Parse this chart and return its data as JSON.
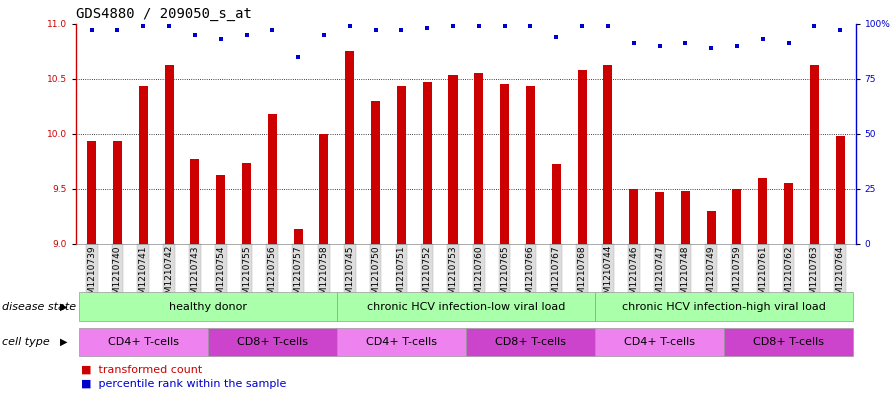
{
  "title": "GDS4880 / 209050_s_at",
  "samples": [
    "GSM1210739",
    "GSM1210740",
    "GSM1210741",
    "GSM1210742",
    "GSM1210743",
    "GSM1210754",
    "GSM1210755",
    "GSM1210756",
    "GSM1210757",
    "GSM1210758",
    "GSM1210745",
    "GSM1210750",
    "GSM1210751",
    "GSM1210752",
    "GSM1210753",
    "GSM1210760",
    "GSM1210765",
    "GSM1210766",
    "GSM1210767",
    "GSM1210768",
    "GSM1210744",
    "GSM1210746",
    "GSM1210747",
    "GSM1210748",
    "GSM1210749",
    "GSM1210759",
    "GSM1210761",
    "GSM1210762",
    "GSM1210763",
    "GSM1210764"
  ],
  "transformed_count": [
    9.93,
    9.93,
    10.43,
    10.62,
    9.77,
    9.62,
    9.73,
    10.18,
    9.13,
    10.0,
    10.75,
    10.3,
    10.43,
    10.47,
    10.53,
    10.55,
    10.45,
    10.43,
    9.72,
    10.58,
    10.62,
    9.5,
    9.47,
    9.48,
    9.3,
    9.5,
    9.6,
    9.55,
    10.62,
    9.98
  ],
  "percentile_rank": [
    97,
    97,
    99,
    99,
    95,
    93,
    95,
    97,
    85,
    95,
    99,
    97,
    97,
    98,
    99,
    99,
    99,
    99,
    94,
    99,
    99,
    91,
    90,
    91,
    89,
    90,
    93,
    91,
    99,
    97
  ],
  "bar_color": "#cc0000",
  "dot_color": "#0000cc",
  "ymin": 9.0,
  "ymax": 11.0,
  "yticks": [
    9.0,
    9.5,
    10.0,
    10.5,
    11.0
  ],
  "right_yticks": [
    0,
    25,
    50,
    75,
    100
  ],
  "disease_groups": [
    {
      "label": "healthy donor",
      "start": 0,
      "end": 9,
      "color": "#aaffaa"
    },
    {
      "label": "chronic HCV infection-low viral load",
      "start": 10,
      "end": 19,
      "color": "#aaffaa"
    },
    {
      "label": "chronic HCV infection-high viral load",
      "start": 20,
      "end": 29,
      "color": "#aaffaa"
    }
  ],
  "cell_type_groups": [
    {
      "label": "CD4+ T-cells",
      "start": 0,
      "end": 4,
      "color": "#ee82ee"
    },
    {
      "label": "CD8+ T-cells",
      "start": 5,
      "end": 9,
      "color": "#cc44cc"
    },
    {
      "label": "CD4+ T-cells",
      "start": 10,
      "end": 14,
      "color": "#ee82ee"
    },
    {
      "label": "CD8+ T-cells",
      "start": 15,
      "end": 19,
      "color": "#cc44cc"
    },
    {
      "label": "CD4+ T-cells",
      "start": 20,
      "end": 24,
      "color": "#ee82ee"
    },
    {
      "label": "CD8+ T-cells",
      "start": 25,
      "end": 29,
      "color": "#cc44cc"
    }
  ],
  "disease_state_label": "disease state",
  "cell_type_label": "cell type",
  "legend_bar_label": "transformed count",
  "legend_dot_label": "percentile rank within the sample",
  "title_fontsize": 10,
  "tick_fontsize": 6.5,
  "label_fontsize": 8,
  "annot_fontsize": 8
}
